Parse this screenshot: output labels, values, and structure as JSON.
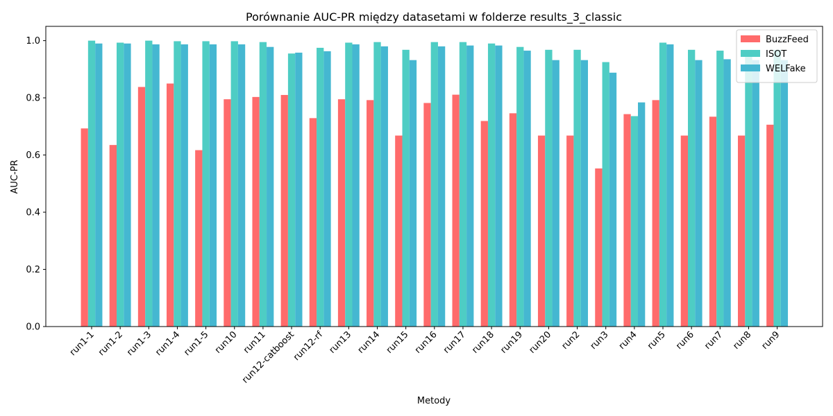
{
  "chart_data": {
    "type": "bar",
    "title": "Porównanie AUC-PR między datasetami w folderze results_3_classic",
    "xlabel": "Metody",
    "ylabel": "AUC-PR",
    "ylim": [
      0,
      1.05
    ],
    "yticks": [
      "0.0",
      "0.2",
      "0.4",
      "0.6",
      "0.8",
      "1.0"
    ],
    "grid": false,
    "legend_position": "top-right",
    "categories": [
      "run1-1",
      "run1-2",
      "run1-3",
      "run1-4",
      "run1-5",
      "run10",
      "run11",
      "run12-catboost",
      "run12-rf",
      "run13",
      "run14",
      "run15",
      "run16",
      "run17",
      "run18",
      "run19",
      "run20",
      "run2",
      "run3",
      "run4",
      "run5",
      "run6",
      "run7",
      "run8",
      "run9"
    ],
    "series": [
      {
        "name": "BuzzFeed",
        "color": "#ff6b6b",
        "values": [
          0.693,
          0.635,
          0.838,
          0.85,
          0.617,
          0.795,
          0.803,
          0.81,
          0.729,
          0.795,
          0.792,
          0.668,
          0.782,
          0.811,
          0.719,
          0.746,
          0.668,
          0.668,
          0.553,
          0.743,
          0.792,
          0.668,
          0.734,
          0.668,
          0.706
        ]
      },
      {
        "name": "ISOT",
        "color": "#4ecdc4",
        "values": [
          1.0,
          0.993,
          1.0,
          0.998,
          0.998,
          0.998,
          0.995,
          0.955,
          0.975,
          0.993,
          0.995,
          0.968,
          0.995,
          0.995,
          0.99,
          0.978,
          0.968,
          0.968,
          0.925,
          0.736,
          0.993,
          0.968,
          0.965,
          0.968,
          0.968
        ]
      },
      {
        "name": "WELFake",
        "color": "#45b7d1",
        "values": [
          0.99,
          0.99,
          0.987,
          0.987,
          0.987,
          0.987,
          0.978,
          0.958,
          0.963,
          0.987,
          0.98,
          0.932,
          0.98,
          0.983,
          0.983,
          0.965,
          0.932,
          0.932,
          0.888,
          0.784,
          0.987,
          0.932,
          0.935,
          0.932,
          0.932
        ]
      }
    ]
  }
}
